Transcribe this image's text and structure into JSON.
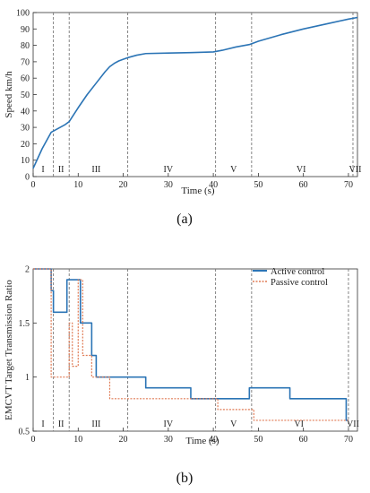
{
  "panels": [
    {
      "label": "(a)"
    },
    {
      "label": "(b)"
    }
  ],
  "colors": {
    "axis": "#333333",
    "divider": "#777777",
    "speed_line": "#2b74b5",
    "active": "#2b74b5",
    "passive": "#e07b55"
  },
  "chart_data": [
    {
      "type": "line",
      "title": "",
      "xlabel": "Time (s)",
      "ylabel": "Speed km/h",
      "xlim": [
        0,
        72
      ],
      "ylim": [
        0,
        100
      ],
      "xticks": [
        0,
        10,
        20,
        30,
        40,
        50,
        60,
        70
      ],
      "yticks": [
        0,
        10,
        20,
        30,
        40,
        50,
        60,
        70,
        80,
        90,
        100
      ],
      "grid": false,
      "phase_dividers": [
        4.5,
        8,
        21,
        40.5,
        48.5,
        71
      ],
      "phase_labels": [
        {
          "text": "I",
          "x": 2.2
        },
        {
          "text": "II",
          "x": 6.2
        },
        {
          "text": "III",
          "x": 14
        },
        {
          "text": "IV",
          "x": 30
        },
        {
          "text": "V",
          "x": 44.5
        },
        {
          "text": "VI",
          "x": 59.5
        },
        {
          "text": "VII",
          "x": 71.5
        }
      ],
      "series": [
        {
          "x": [
            0,
            1,
            2,
            3,
            4,
            5,
            6,
            7,
            8,
            10,
            12,
            14,
            16,
            17,
            18,
            19,
            20,
            21,
            23,
            25,
            30,
            35,
            40,
            42,
            45,
            48,
            50,
            55,
            60,
            65,
            70,
            72
          ],
          "y": [
            5,
            11,
            17,
            22,
            27,
            28.5,
            30,
            31.5,
            33.5,
            42,
            50,
            57,
            64,
            67,
            69,
            70.5,
            71.5,
            72.5,
            74,
            75,
            75.3,
            75.6,
            76,
            77,
            79,
            80.5,
            82.5,
            86.5,
            90,
            93,
            96,
            97
          ]
        }
      ]
    },
    {
      "type": "line",
      "title": "",
      "xlabel": "Time (s)",
      "ylabel": "EMCVT Target Transmission Ratio",
      "xlim": [
        0,
        72
      ],
      "ylim": [
        0.5,
        2
      ],
      "xticks": [
        0,
        10,
        20,
        30,
        40,
        50,
        60,
        70
      ],
      "yticks": [
        0.5,
        1,
        1.5,
        2
      ],
      "ytick_labels": [
        "0.5",
        "1",
        "1.5",
        "2"
      ],
      "grid": false,
      "legend": "top-right",
      "phase_dividers": [
        4.5,
        8,
        21,
        40.5,
        48.5,
        70
      ],
      "phase_labels": [
        {
          "text": "I",
          "x": 2.2
        },
        {
          "text": "II",
          "x": 6.2
        },
        {
          "text": "III",
          "x": 14
        },
        {
          "text": "IV",
          "x": 30
        },
        {
          "text": "V",
          "x": 44.5
        },
        {
          "text": "VI",
          "x": 59
        },
        {
          "text": "VII",
          "x": 71
        }
      ],
      "series": [
        {
          "name": "Active control",
          "x": [
            0,
            4,
            4,
            4.5,
            4.5,
            7.5,
            7.5,
            10.5,
            10.5,
            13,
            13,
            14,
            14,
            25,
            25,
            35,
            35,
            48,
            48,
            57,
            57,
            69.5,
            69.5,
            70
          ],
          "y": [
            2,
            2,
            1.8,
            1.8,
            1.6,
            1.6,
            1.9,
            1.9,
            1.5,
            1.5,
            1.2,
            1.2,
            1,
            1,
            0.9,
            0.9,
            0.8,
            0.8,
            0.9,
            0.9,
            0.8,
            0.8,
            0.6,
            0.6
          ]
        },
        {
          "name": "Passive control",
          "x": [
            0,
            4,
            4,
            8,
            8,
            8.7,
            8.7,
            10,
            10,
            11,
            11,
            13,
            13,
            17,
            17,
            41,
            41,
            49,
            49,
            57,
            57,
            70
          ],
          "y": [
            2,
            2,
            1,
            1,
            1.5,
            1.5,
            1.1,
            1.1,
            1.9,
            1.9,
            1.2,
            1.2,
            1,
            1,
            0.8,
            0.8,
            0.7,
            0.7,
            0.6,
            0.6,
            0.6,
            0.6
          ]
        }
      ]
    }
  ]
}
